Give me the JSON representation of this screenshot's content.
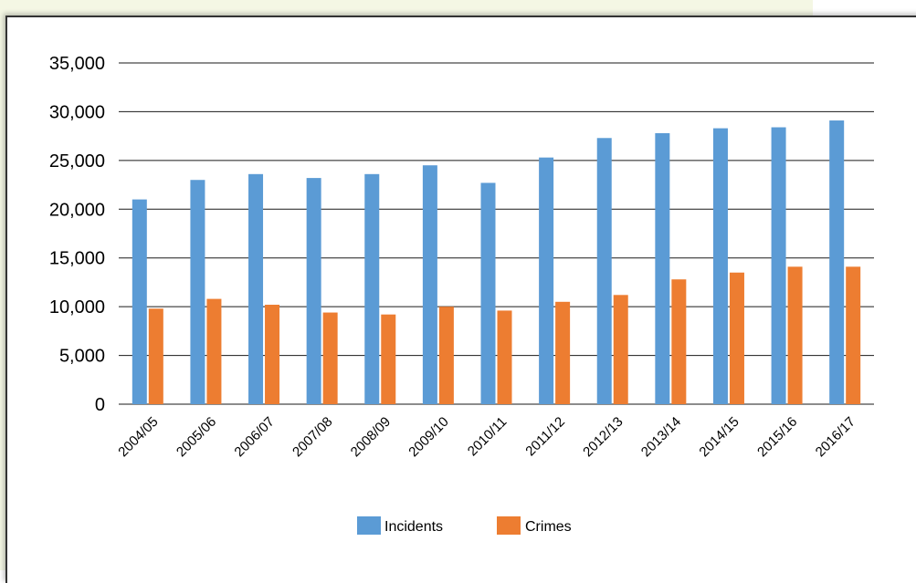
{
  "chart_data": {
    "type": "bar",
    "categories": [
      "2004/05",
      "2005/06",
      "2006/07",
      "2007/08",
      "2008/09",
      "2009/10",
      "2010/11",
      "2011/12",
      "2012/13",
      "2013/14",
      "2014/15",
      "2015/16",
      "2016/17"
    ],
    "series": [
      {
        "name": "Incidents",
        "color": "#5b9bd5",
        "values": [
          21000,
          23000,
          23600,
          23200,
          23600,
          24500,
          22700,
          25300,
          27300,
          27800,
          28300,
          28400,
          29100
        ]
      },
      {
        "name": "Crimes",
        "color": "#ed7d31",
        "values": [
          9800,
          10800,
          10200,
          9400,
          9200,
          10000,
          9600,
          10500,
          11200,
          12800,
          13500,
          14100,
          14100
        ]
      }
    ],
    "yticks": [
      "0",
      "5,000",
      "10,000",
      "15,000",
      "20,000",
      "25,000",
      "30,000",
      "35,000"
    ],
    "ylim": [
      0,
      35000
    ],
    "grid": true,
    "legend_position": "bottom"
  }
}
